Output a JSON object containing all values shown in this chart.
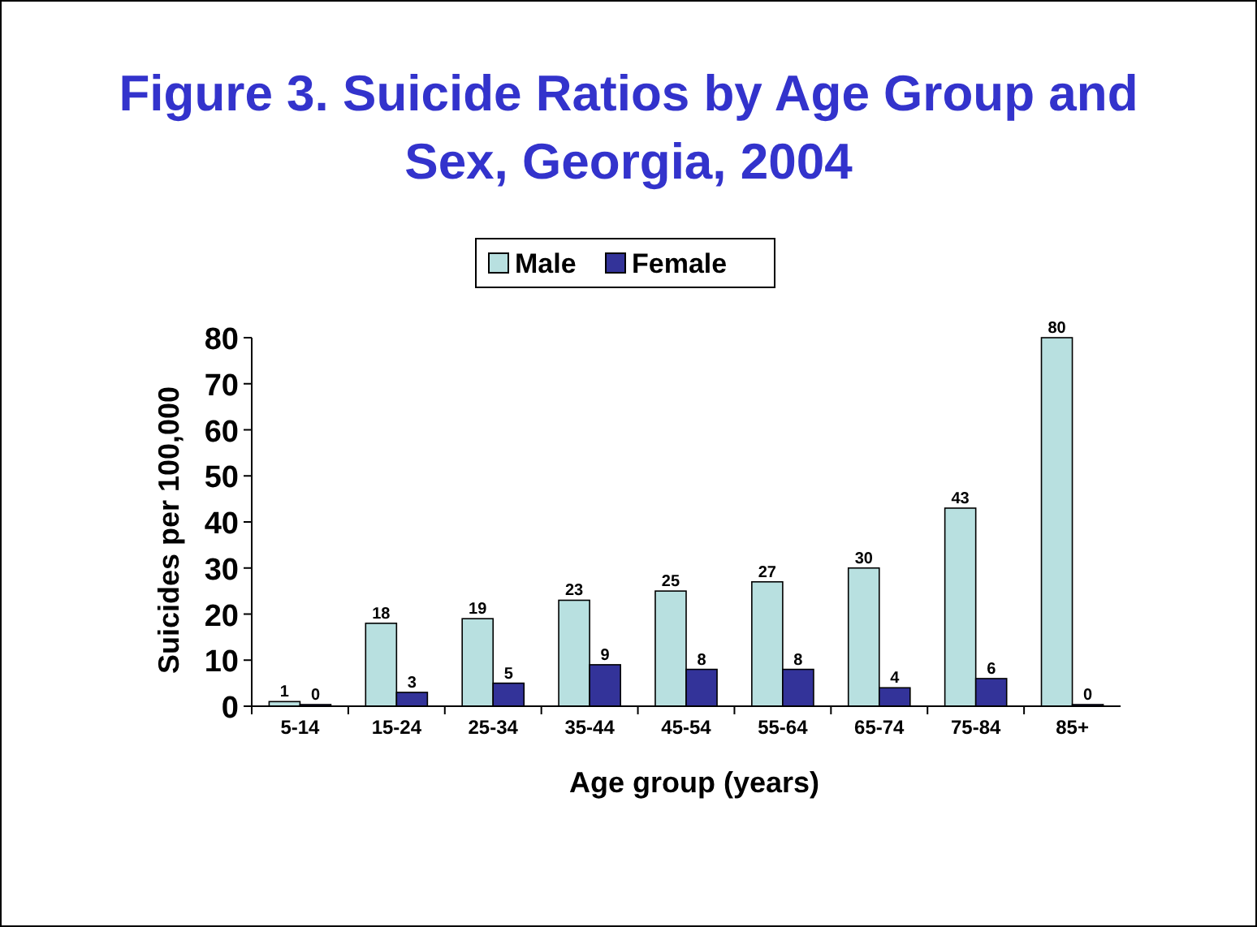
{
  "chart_data": {
    "type": "bar",
    "title": "Figure 3. Suicide Ratios by Age Group and Sex, Georgia, 2004",
    "xlabel": "Age group (years)",
    "ylabel": "Suicides per 100,000",
    "categories": [
      "5-14",
      "15-24",
      "25-34",
      "35-44",
      "45-54",
      "55-64",
      "65-74",
      "75-84",
      "85+"
    ],
    "series": [
      {
        "name": "Male",
        "color": "#b8e0e0",
        "values": [
          1,
          18,
          19,
          23,
          25,
          27,
          30,
          43,
          80
        ]
      },
      {
        "name": "Female",
        "color": "#333399",
        "values": [
          0,
          3,
          5,
          9,
          8,
          8,
          4,
          6,
          0
        ]
      }
    ],
    "ylim": [
      0,
      80
    ],
    "yticks": [
      0,
      10,
      20,
      30,
      40,
      50,
      60,
      70,
      80
    ],
    "data_labels": true,
    "legend": "top",
    "grid": false
  }
}
